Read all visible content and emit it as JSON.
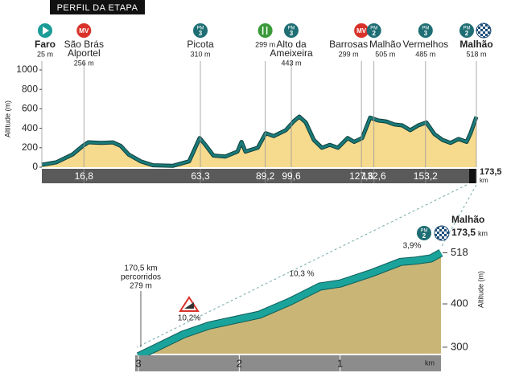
{
  "chart_data": [
    {
      "type": "area",
      "title": "PERFIL DA ETAPA",
      "ylabel": "Altitude (m)",
      "xlabel": "km",
      "x": [
        0,
        5.8,
        12.2,
        16.4,
        18.6,
        23.5,
        28.3,
        31.5,
        34.7,
        39.5,
        44.4,
        52.4,
        58.8,
        63,
        65.3,
        68.5,
        73.3,
        78.1,
        79.7,
        81.3,
        86.2,
        89.4,
        92.6,
        97.4,
        100.5,
        102.8,
        105.4,
        108.6,
        111.8,
        115,
        118.2,
        122.1,
        124.7,
        127.9,
        131.1,
        134.3,
        137.5,
        140.7,
        143.9,
        147.1,
        150.3,
        153.5,
        156.8,
        160,
        163.2,
        166.4,
        169.6,
        171.2,
        173.5
      ],
      "series": [
        {
          "color": "#1b7a78",
          "fill": "#f6da8e",
          "values": [
            25,
            50,
            130,
            220,
            256,
            250,
            255,
            220,
            130,
            60,
            20,
            15,
            60,
            300,
            230,
            120,
            110,
            160,
            260,
            160,
            200,
            350,
            320,
            380,
            470,
            520,
            460,
            280,
            200,
            230,
            200,
            300,
            260,
            300,
            510,
            480,
            470,
            440,
            430,
            380,
            430,
            460,
            340,
            280,
            250,
            290,
            260,
            350,
            518
          ]
        }
      ],
      "xlim": [
        0,
        173.5
      ],
      "ylim": [
        0,
        1000
      ],
      "yticks": [
        0,
        200,
        400,
        600,
        800,
        1000
      ],
      "xticks": [
        {
          "value": 16.8,
          "label": "16,8"
        },
        {
          "value": 63.3,
          "label": "63,3"
        },
        {
          "value": 89.2,
          "label": "89,2"
        },
        {
          "value": 99.6,
          "label": "99,6"
        },
        {
          "value": 127.6,
          "label": "127,6"
        },
        {
          "value": 132.6,
          "label": "132,6"
        },
        {
          "value": 153.2,
          "label": "153,2"
        },
        {
          "value": 173.5,
          "label": "173,5"
        }
      ],
      "waypoints": [
        {
          "km": 0,
          "name": [
            "Faro"
          ],
          "altitude": "25 m",
          "icon": "start"
        },
        {
          "km": 16.8,
          "name": [
            "São Brás",
            "Alportel"
          ],
          "altitude": "256 m",
          "icon": "mv",
          "badge": "MV"
        },
        {
          "km": 63.3,
          "name": [
            "Picota"
          ],
          "altitude": "310 m",
          "icon": "pm",
          "badge": "PM",
          "category": "3"
        },
        {
          "km": 89.2,
          "altitude": "299 m",
          "icon": "feed"
        },
        {
          "km": 99.6,
          "name": [
            "Alto da",
            "Ameixeira"
          ],
          "altitude": "443 m",
          "icon": "pm",
          "badge": "PM",
          "category": "3"
        },
        {
          "km": 127.6,
          "name": [
            "Barrosas"
          ],
          "altitude": "299 m",
          "icon": "mv",
          "badge": "MV"
        },
        {
          "km": 132.6,
          "name": [
            "Malhão"
          ],
          "altitude": "505 m",
          "icon": "pm",
          "badge": "PM",
          "category": "2"
        },
        {
          "km": 153.2,
          "name": [
            "Vermelhos"
          ],
          "altitude": "485 m",
          "icon": "pm",
          "badge": "PM",
          "category": "3"
        },
        {
          "km": 173.5,
          "name": [
            "Malhão"
          ],
          "altitude": "518 m",
          "icon": "pm",
          "badge": "PM",
          "category": "2",
          "finish": true
        }
      ]
    },
    {
      "type": "area",
      "ylabel": "Altitude (m)",
      "xlabel": "km",
      "x": [
        3,
        2.55,
        2.3,
        2,
        1.8,
        1.5,
        1.2,
        1,
        0.7,
        0.4,
        0.25,
        0.1,
        0
      ],
      "series": [
        {
          "color": "#1aa39a",
          "fill": "#c9b677",
          "values": [
            279,
            330,
            350,
            365,
            375,
            405,
            440,
            447,
            470,
            497,
            500,
            505,
            518
          ]
        }
      ],
      "xlim": [
        3,
        0
      ],
      "ylim": [
        285,
        530
      ],
      "xticks": [
        3,
        2,
        1
      ],
      "yticks": [
        300,
        400,
        518
      ],
      "annotations": [
        {
          "lines": [
            "170,5 km",
            "percorridos",
            "279 m"
          ]
        },
        {
          "lines": [
            "10,2%"
          ]
        },
        {
          "lines": [
            "10,3 %"
          ]
        },
        {
          "lines": [
            "3,9%"
          ]
        }
      ],
      "finish": {
        "name": "Malhão",
        "distance": "173,5",
        "unit": "km",
        "badge": "PM",
        "category": "2"
      }
    }
  ]
}
